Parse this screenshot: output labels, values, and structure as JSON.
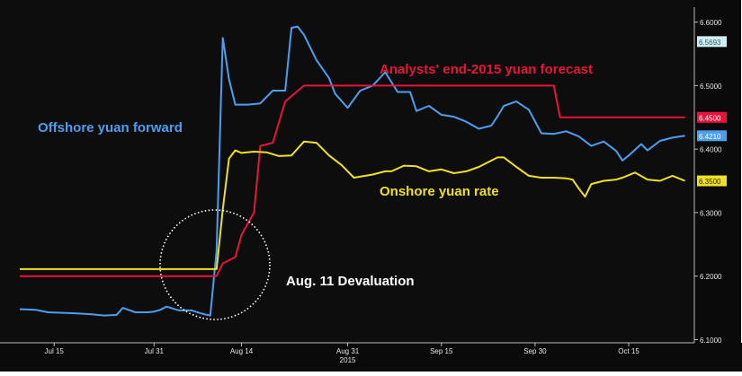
{
  "chart_data": {
    "type": "line",
    "title": "",
    "xlabel": "",
    "ylabel": "",
    "ylim": [
      6.095,
      6.615
    ],
    "grid": false,
    "background": "#0d0d0d",
    "x_ticks": [
      {
        "label": "Jul 15",
        "day": 2
      },
      {
        "label": "Jul 31",
        "day": 18
      },
      {
        "label": "Aug 14",
        "day": 32
      },
      {
        "label": "Aug 31",
        "day": 49
      },
      {
        "label": "Sep 15",
        "day": 64
      },
      {
        "label": "Sep 30",
        "day": 79
      },
      {
        "label": "Oct 15",
        "day": 94
      }
    ],
    "x_year_label": "2015",
    "x_year_day": 49,
    "x_range": [
      -3.5,
      104.5
    ],
    "y_ticks": [
      "6.1000",
      "6.2000",
      "6.3000",
      "6.4000",
      "6.5000",
      "6.6000"
    ],
    "series": [
      {
        "name": "Offshore yuan forward",
        "color": "#4a9ff0",
        "x": [
          -3.5,
          -1,
          1,
          4,
          6,
          8,
          10,
          12,
          13,
          15,
          17,
          18,
          19,
          20,
          22,
          24,
          26,
          27,
          28,
          29,
          30,
          31,
          33,
          35,
          37,
          39,
          40,
          41,
          42,
          44,
          46,
          47,
          49,
          51,
          53,
          55,
          57,
          59,
          60,
          62,
          64,
          66,
          68,
          70,
          72,
          73,
          74,
          76,
          78,
          80,
          82,
          84,
          86,
          88,
          90,
          92,
          93,
          94,
          96,
          97,
          99,
          101,
          103
        ],
        "values": [
          6.148,
          6.147,
          6.143,
          6.142,
          6.141,
          6.14,
          6.138,
          6.139,
          6.15,
          6.143,
          6.143,
          6.144,
          6.147,
          6.152,
          6.146,
          6.146,
          6.14,
          6.138,
          6.24,
          6.575,
          6.51,
          6.47,
          6.47,
          6.472,
          6.492,
          6.492,
          6.591,
          6.593,
          6.58,
          6.54,
          6.512,
          6.487,
          6.465,
          6.492,
          6.5,
          6.521,
          6.49,
          6.49,
          6.46,
          6.468,
          6.454,
          6.451,
          6.443,
          6.432,
          6.437,
          6.452,
          6.468,
          6.475,
          6.462,
          6.425,
          6.424,
          6.428,
          6.42,
          6.405,
          6.412,
          6.397,
          6.382,
          6.39,
          6.408,
          6.398,
          6.413,
          6.418,
          6.421
        ]
      },
      {
        "name": "Analysts' end-2015 yuan forecast",
        "color": "#e8143c",
        "x": [
          -3.5,
          28,
          29,
          30,
          31,
          32,
          34,
          35,
          37,
          39,
          42,
          82,
          83,
          103
        ],
        "values": [
          6.2,
          6.2,
          6.22,
          6.225,
          6.23,
          6.265,
          6.3,
          6.405,
          6.41,
          6.475,
          6.5,
          6.5,
          6.45,
          6.45
        ]
      },
      {
        "name": "Onshore yuan rate",
        "color": "#f0e020",
        "x": [
          -3.5,
          28,
          29,
          30,
          31,
          32,
          34,
          36,
          38,
          40,
          42,
          44,
          46,
          48,
          50,
          53,
          55,
          56,
          58,
          60,
          62,
          64,
          66,
          68,
          70,
          73,
          74,
          76,
          78,
          80,
          82,
          84,
          85,
          86,
          87,
          88,
          90,
          92,
          93,
          95,
          97,
          99,
          101,
          103
        ],
        "values": [
          6.211,
          6.211,
          6.305,
          6.385,
          6.398,
          6.394,
          6.396,
          6.395,
          6.389,
          6.39,
          6.412,
          6.41,
          6.39,
          6.375,
          6.355,
          6.36,
          6.365,
          6.365,
          6.374,
          6.373,
          6.365,
          6.368,
          6.362,
          6.365,
          6.372,
          6.387,
          6.387,
          6.372,
          6.358,
          6.355,
          6.355,
          6.354,
          6.352,
          6.338,
          6.325,
          6.345,
          6.35,
          6.352,
          6.355,
          6.363,
          6.352,
          6.35,
          6.358,
          6.35
        ]
      }
    ],
    "last_value_labels": [
      {
        "text": "6.5693",
        "value": 6.5693,
        "bg": "#cfeef2",
        "fg": "#2a5c66"
      },
      {
        "text": "6.4500",
        "value": 6.45,
        "bg": "#e8143c",
        "fg": "#ffffff"
      },
      {
        "text": "6.4210",
        "value": 6.421,
        "bg": "#4a9ff0",
        "fg": "#ffffff"
      },
      {
        "text": "6.3500",
        "value": 6.35,
        "bg": "#f0e020",
        "fg": "#222222"
      }
    ],
    "annotations": [
      {
        "text": "Offshore yuan forward",
        "color": "#4a9ff0"
      },
      {
        "text": "Analysts' end-2015 yuan forecast",
        "color": "#e8143c"
      },
      {
        "text": "Onshore yuan rate",
        "color": "#f0e020"
      },
      {
        "text": "Aug. 11 Devaluation",
        "color": "#ffffff"
      }
    ]
  }
}
